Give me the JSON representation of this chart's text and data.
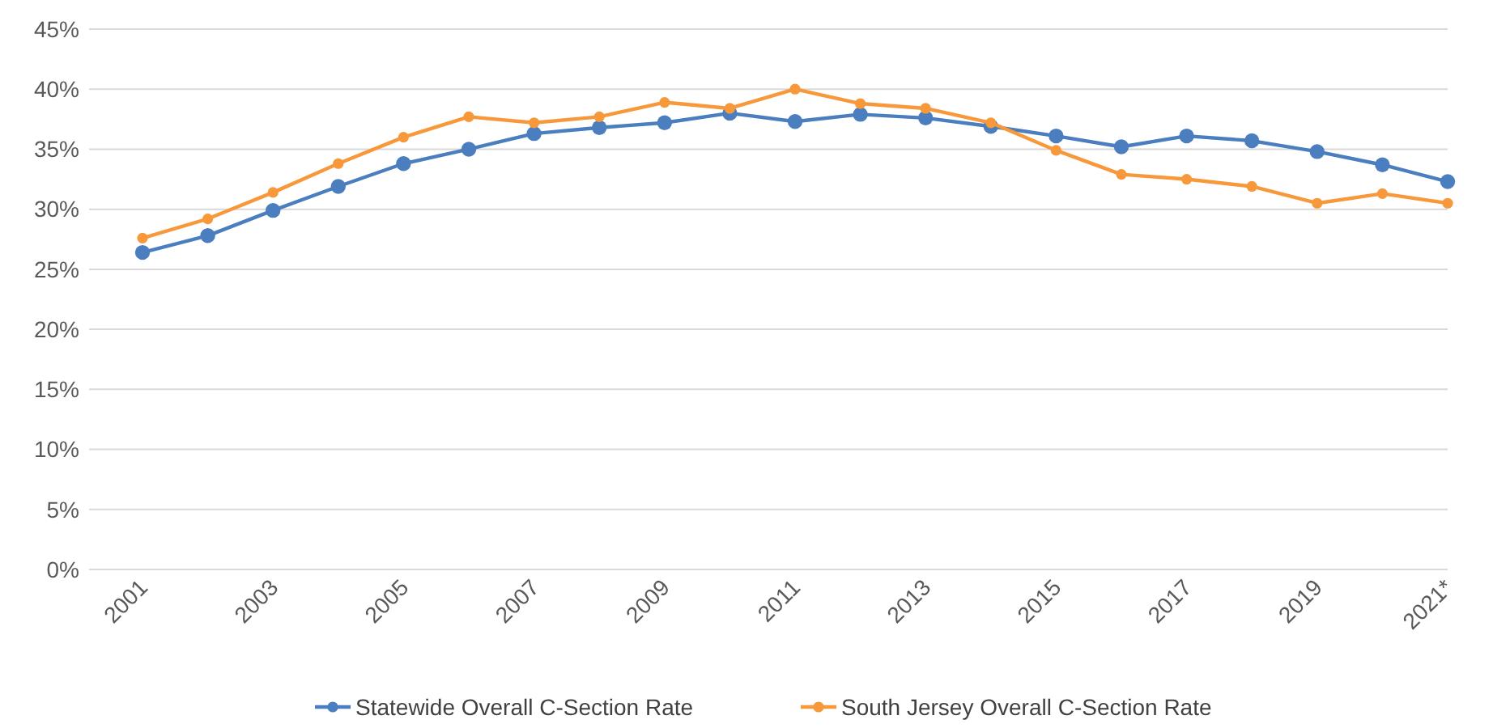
{
  "chart_data": {
    "type": "line",
    "categories": [
      "2001",
      null,
      "2003",
      null,
      "2005",
      null,
      "2007",
      null,
      "2009",
      null,
      "2011",
      null,
      "2013",
      null,
      "2015",
      null,
      "2017",
      null,
      "2019",
      null,
      "2021*"
    ],
    "series": [
      {
        "name": "Statewide Overall C-Section Rate",
        "color": "#4a7ebf",
        "values": [
          26.4,
          27.8,
          29.9,
          31.9,
          33.8,
          35.0,
          36.3,
          36.8,
          37.2,
          38.0,
          37.3,
          37.9,
          37.6,
          36.9,
          36.1,
          35.2,
          36.1,
          35.7,
          34.8,
          33.7,
          32.3
        ]
      },
      {
        "name": "South Jersey Overall C-Section Rate",
        "color": "#f7983a",
        "values": [
          27.6,
          29.2,
          31.4,
          33.8,
          36.0,
          37.7,
          37.2,
          37.7,
          38.9,
          38.4,
          40.0,
          38.8,
          38.4,
          37.2,
          34.9,
          32.9,
          32.5,
          31.9,
          30.5,
          31.3,
          30.5
        ]
      }
    ],
    "ylim": [
      0,
      45
    ],
    "yticks": [
      {
        "value": 0,
        "label": "0%"
      },
      {
        "value": 5,
        "label": "5%"
      },
      {
        "value": 10,
        "label": "10%"
      },
      {
        "value": 15,
        "label": "15%"
      },
      {
        "value": 20,
        "label": "20%"
      },
      {
        "value": 25,
        "label": "25%"
      },
      {
        "value": 30,
        "label": "30%"
      },
      {
        "value": 35,
        "label": "35%"
      },
      {
        "value": 40,
        "label": "40%"
      },
      {
        "value": 45,
        "label": "45%"
      }
    ],
    "grid": "y",
    "legend": "bottom",
    "marker": "circle",
    "line_style": "solid"
  }
}
